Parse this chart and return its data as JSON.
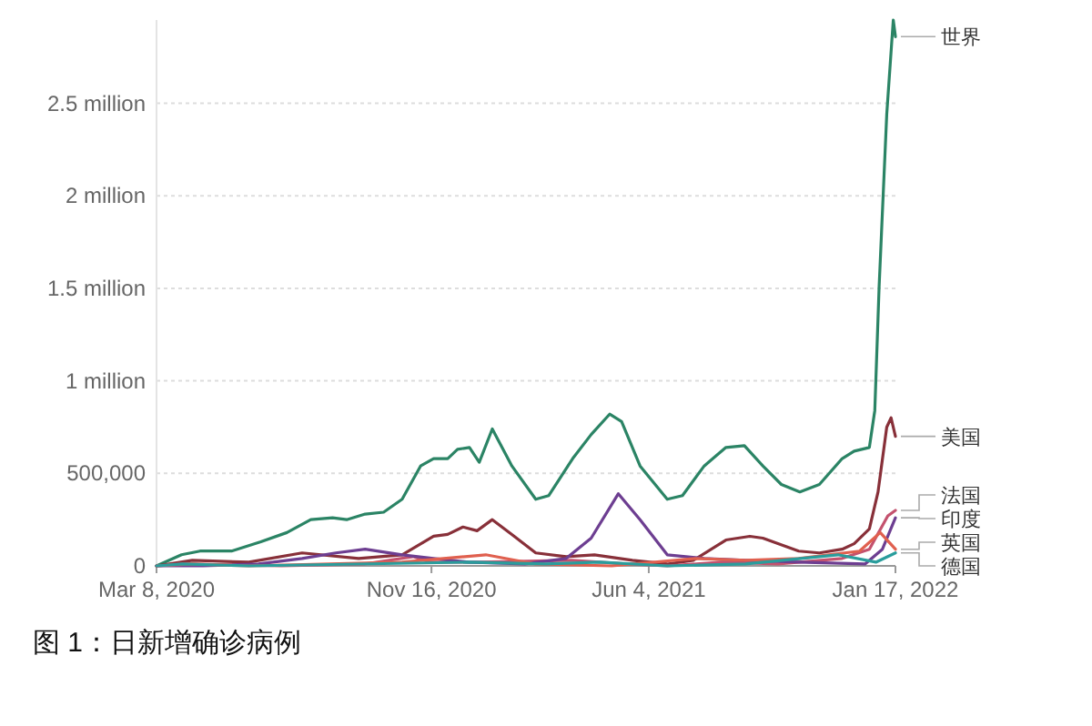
{
  "chart_data": {
    "type": "line",
    "xlim": [
      "2020-03-08",
      "2022-01-17"
    ],
    "xticks": [
      {
        "value": "2020-03-08",
        "label": "Mar 8, 2020"
      },
      {
        "value": "2020-11-16",
        "label": "Nov 16, 2020"
      },
      {
        "value": "2021-06-04",
        "label": "Jun 4, 2021"
      },
      {
        "value": "2022-01-17",
        "label": "Jan 17, 2022"
      }
    ],
    "yticks": [
      0,
      {
        "value": 500000,
        "label": "500,000"
      },
      {
        "value": 1000000,
        "label": "1 million"
      },
      {
        "value": 1500000,
        "label": "1.5 million"
      },
      {
        "value": 2000000,
        "label": "2 million"
      },
      {
        "value": 2500000,
        "label": "2.5 million"
      }
    ],
    "ylim": [
      0,
      2950000
    ],
    "grid": "y",
    "series": [
      {
        "name": "世界",
        "color": "#2b8465",
        "x": [
          "2020-03-08",
          "2020-03-31",
          "2020-04-17",
          "2020-05-16",
          "2020-06-12",
          "2020-07-06",
          "2020-07-28",
          "2020-08-17",
          "2020-08-30",
          "2020-09-16",
          "2020-10-03",
          "2020-10-20",
          "2020-11-06",
          "2020-11-18",
          "2020-12-01",
          "2020-12-10",
          "2020-12-21",
          "2020-12-30",
          "2021-01-11",
          "2021-01-29",
          "2021-02-20",
          "2021-03-04",
          "2021-03-26",
          "2021-04-12",
          "2021-04-29",
          "2021-05-10",
          "2021-05-27",
          "2021-06-21",
          "2021-07-05",
          "2021-07-25",
          "2021-08-14",
          "2021-08-31",
          "2021-09-17",
          "2021-10-04",
          "2021-10-21",
          "2021-11-08",
          "2021-11-29",
          "2021-12-10",
          "2021-12-24",
          "2021-12-29",
          "2022-01-02",
          "2022-01-09",
          "2022-01-15",
          "2022-01-17"
        ],
        "values": [
          0,
          60000,
          80000,
          80000,
          130000,
          180000,
          250000,
          260000,
          250000,
          280000,
          290000,
          360000,
          540000,
          580000,
          580000,
          630000,
          640000,
          560000,
          740000,
          540000,
          360000,
          380000,
          580000,
          710000,
          820000,
          780000,
          540000,
          360000,
          380000,
          540000,
          640000,
          650000,
          540000,
          440000,
          400000,
          440000,
          580000,
          620000,
          640000,
          840000,
          1510000,
          2440000,
          2950000,
          2860000
        ]
      },
      {
        "name": "美国",
        "color": "#883039",
        "x": [
          "2020-03-08",
          "2020-04-10",
          "2020-06-01",
          "2020-07-20",
          "2020-09-10",
          "2020-10-20",
          "2020-11-18",
          "2020-12-01",
          "2020-12-15",
          "2020-12-28",
          "2021-01-11",
          "2021-01-29",
          "2021-02-20",
          "2021-03-20",
          "2021-04-15",
          "2021-05-20",
          "2021-06-21",
          "2021-07-15",
          "2021-08-14",
          "2021-09-05",
          "2021-09-17",
          "2021-10-20",
          "2021-11-08",
          "2021-11-29",
          "2021-12-10",
          "2021-12-24",
          "2022-01-01",
          "2022-01-09",
          "2022-01-13",
          "2022-01-17"
        ],
        "values": [
          0,
          30000,
          20000,
          70000,
          40000,
          60000,
          160000,
          170000,
          210000,
          190000,
          250000,
          170000,
          70000,
          50000,
          60000,
          30000,
          10000,
          30000,
          140000,
          160000,
          150000,
          80000,
          70000,
          90000,
          120000,
          200000,
          400000,
          750000,
          800000,
          700000
        ]
      },
      {
        "name": "法国",
        "color": "#c4526e",
        "x": [
          "2020-03-08",
          "2020-04-01",
          "2020-07-01",
          "2020-09-15",
          "2020-10-30",
          "2020-11-15",
          "2020-12-30",
          "2021-03-25",
          "2021-05-15",
          "2021-06-21",
          "2021-08-10",
          "2021-10-01",
          "2021-11-29",
          "2021-12-24",
          "2022-01-10",
          "2022-01-17"
        ],
        "values": [
          0,
          10000,
          0,
          10000,
          50000,
          20000,
          20000,
          30000,
          10000,
          0,
          20000,
          10000,
          40000,
          90000,
          270000,
          300000
        ]
      },
      {
        "name": "印度",
        "color": "#6d3e91",
        "x": [
          "2020-03-08",
          "2020-04-20",
          "2020-06-10",
          "2020-07-20",
          "2020-08-20",
          "2020-09-16",
          "2020-10-20",
          "2020-11-18",
          "2020-12-20",
          "2021-02-10",
          "2021-03-20",
          "2021-04-12",
          "2021-05-07",
          "2021-05-27",
          "2021-06-21",
          "2021-07-25",
          "2021-09-01",
          "2021-10-20",
          "2021-12-20",
          "2022-01-05",
          "2022-01-17"
        ],
        "values": [
          0,
          0,
          10000,
          40000,
          70000,
          90000,
          60000,
          40000,
          20000,
          10000,
          40000,
          150000,
          390000,
          250000,
          60000,
          40000,
          30000,
          20000,
          10000,
          90000,
          260000
        ]
      },
      {
        "name": "英国",
        "color": "#e0604f",
        "x": [
          "2020-03-08",
          "2020-04-10",
          "2020-06-01",
          "2020-10-20",
          "2021-01-05",
          "2021-02-20",
          "2021-05-01",
          "2021-07-17",
          "2021-09-01",
          "2021-10-20",
          "2021-12-15",
          "2022-01-03",
          "2022-01-17"
        ],
        "values": [
          0,
          10000,
          0,
          20000,
          60000,
          10000,
          0,
          40000,
          30000,
          40000,
          80000,
          180000,
          90000
        ]
      },
      {
        "name": "德国",
        "color": "#2a9d9c",
        "x": [
          "2020-03-08",
          "2020-04-01",
          "2020-06-01",
          "2020-12-20",
          "2021-03-01",
          "2021-04-20",
          "2021-06-21",
          "2021-09-01",
          "2021-11-25",
          "2021-12-30",
          "2022-01-17"
        ],
        "values": [
          0,
          10000,
          0,
          20000,
          10000,
          20000,
          0,
          10000,
          60000,
          20000,
          70000
        ]
      }
    ],
    "annotations": [
      "图 1：日新增确诊病例"
    ]
  }
}
